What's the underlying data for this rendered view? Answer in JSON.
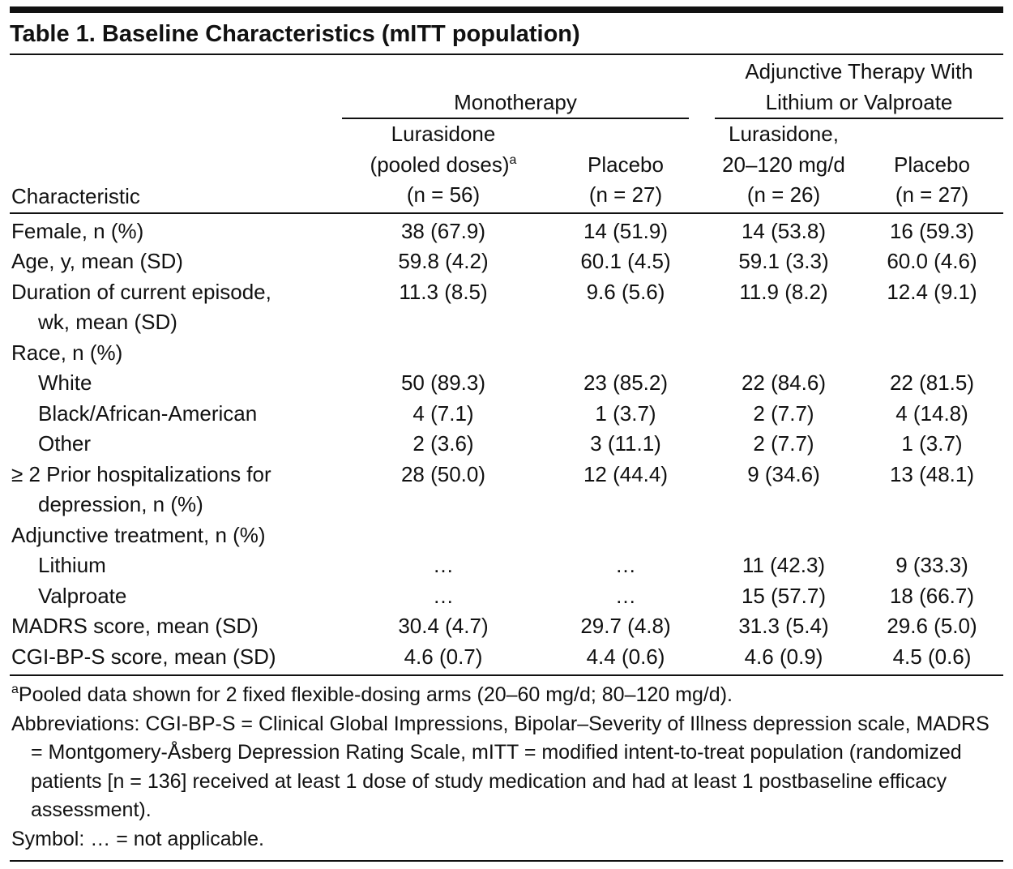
{
  "title": "Table 1. Baseline Characteristics (mITT population)",
  "header": {
    "stub": "Characteristic",
    "groups": [
      {
        "lines": [
          "Monotherapy"
        ],
        "span": 2
      },
      {
        "lines": [
          "Adjunctive Therapy With",
          "Lithium or Valproate"
        ],
        "span": 2
      }
    ],
    "columns": [
      {
        "lines": [
          "Lurasidone",
          "(pooled doses)",
          "(n = 56)"
        ],
        "sup": "a"
      },
      {
        "lines": [
          "Placebo",
          "(n = 27)"
        ]
      },
      {
        "lines": [
          "Lurasidone,",
          "20–120 mg/d",
          "(n = 26)"
        ]
      },
      {
        "lines": [
          "Placebo",
          "(n = 27)"
        ]
      }
    ]
  },
  "rows": [
    {
      "label": [
        "Female, n (%)"
      ],
      "cells": [
        "38 (67.9)",
        "14 (51.9)",
        "14 (53.8)",
        "16 (59.3)"
      ]
    },
    {
      "label": [
        "Age, y, mean (SD)"
      ],
      "cells": [
        "59.8 (4.2)",
        "60.1 (4.5)",
        "59.1 (3.3)",
        "60.0 (4.6)"
      ]
    },
    {
      "label": [
        "Duration of current episode,",
        "wk, mean (SD)"
      ],
      "cells": [
        "11.3 (8.5)",
        "9.6 (5.6)",
        "11.9 (8.2)",
        "12.4 (9.1)"
      ]
    },
    {
      "label": [
        "Race, n (%)"
      ]
    },
    {
      "label": [
        "White"
      ],
      "indent": true,
      "cells": [
        "50 (89.3)",
        "23 (85.2)",
        "22 (84.6)",
        "22 (81.5)"
      ]
    },
    {
      "label": [
        "Black/African-American"
      ],
      "indent": true,
      "cells": [
        "4 (7.1)",
        "1 (3.7)",
        "2 (7.7)",
        "4 (14.8)"
      ]
    },
    {
      "label": [
        "Other"
      ],
      "indent": true,
      "cells": [
        "2 (3.6)",
        "3 (11.1)",
        "2 (7.7)",
        "1 (3.7)"
      ]
    },
    {
      "label": [
        "≥ 2 Prior hospitalizations for",
        "depression, n (%)"
      ],
      "cells": [
        "28 (50.0)",
        "12 (44.4)",
        "9 (34.6)",
        "13 (48.1)"
      ]
    },
    {
      "label": [
        "Adjunctive treatment, n (%)"
      ]
    },
    {
      "label": [
        "Lithium"
      ],
      "indent": true,
      "cells": [
        "…",
        "…",
        "11 (42.3)",
        "9 (33.3)"
      ]
    },
    {
      "label": [
        "Valproate"
      ],
      "indent": true,
      "cells": [
        "…",
        "…",
        "15 (57.7)",
        "18 (66.7)"
      ]
    },
    {
      "label": [
        "MADRS score, mean (SD)"
      ],
      "cells": [
        "30.4 (4.7)",
        "29.7 (4.8)",
        "31.3 (5.4)",
        "29.6 (5.0)"
      ]
    },
    {
      "label": [
        "CGI-BP-S score, mean (SD)"
      ],
      "cells": [
        "4.6 (0.7)",
        "4.4 (0.6)",
        "4.6 (0.9)",
        "4.5 (0.6)"
      ]
    }
  ],
  "footnotes": [
    {
      "sup": "a",
      "text": "Pooled data shown for 2 fixed flexible-dosing arms (20–60 mg/d; 80–120 mg/d)."
    },
    {
      "text": "Abbreviations: CGI-BP-S = Clinical Global Impressions, Bipolar–Severity of Illness depression scale, MADRS = Montgomery-Åsberg Depression Rating Scale, mITT = modified intent-to-treat population (randomized patients [n = 136] received at least 1 dose of study medication and had at least 1 postbaseline efficacy assessment)."
    },
    {
      "text": "Symbol: … = not applicable."
    }
  ]
}
